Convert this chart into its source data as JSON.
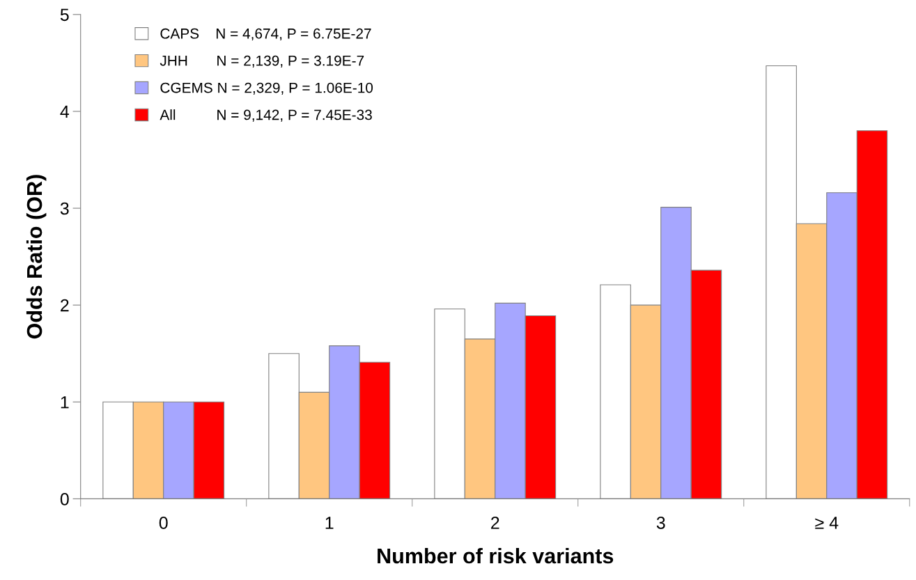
{
  "chart_data": {
    "type": "bar",
    "xlabel": "Number of risk variants",
    "ylabel": "Odds Ratio (OR)",
    "categories": [
      "0",
      "1",
      "2",
      "3",
      "≥ 4"
    ],
    "series": [
      {
        "name": "CAPS    N = 4,674, P = 6.75E-27",
        "color": "#ffffff",
        "values": [
          1,
          1.5,
          1.96,
          2.21,
          4.47
        ]
      },
      {
        "name": "JHH       N = 2,139, P = 3.19E-7",
        "color": "#ffc680",
        "values": [
          1,
          1.1,
          1.65,
          2.0,
          2.84
        ]
      },
      {
        "name": "CGEMS N = 2,329, P = 1.06E-10",
        "color": "#a6a6ff",
        "values": [
          1,
          1.58,
          2.02,
          3.01,
          3.16
        ]
      },
      {
        "name": "All          N = 9,142, P = 7.45E-33",
        "color": "#ff0000",
        "values": [
          1,
          1.41,
          1.89,
          2.36,
          3.8
        ]
      }
    ],
    "ylim": [
      0,
      5
    ],
    "yticks": [
      0,
      1,
      2,
      3,
      4,
      5
    ],
    "grid": false,
    "legend": "top left"
  }
}
